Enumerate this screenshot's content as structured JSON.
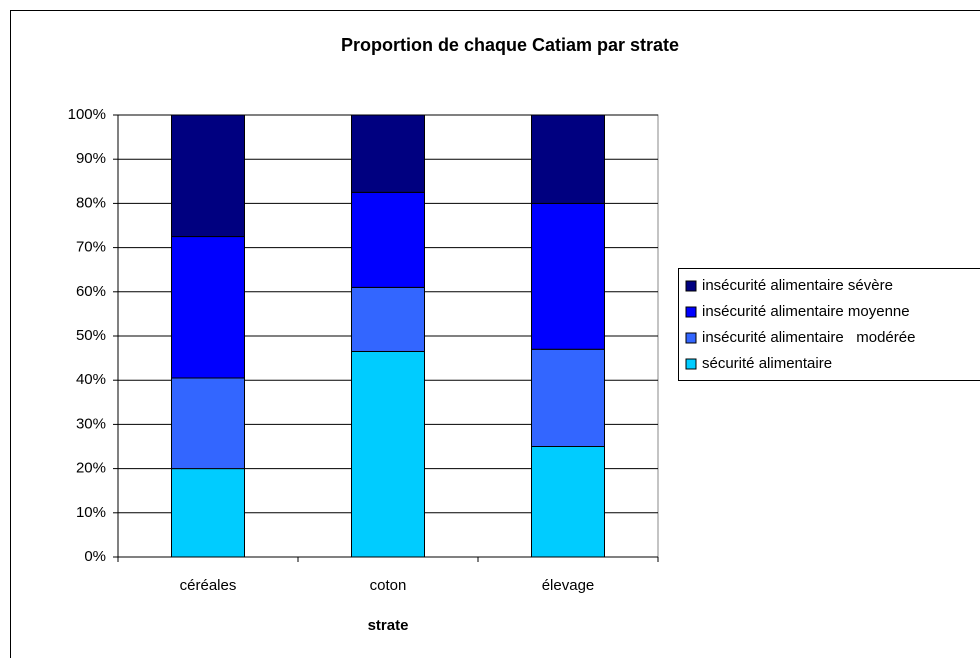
{
  "chart_data": {
    "type": "stacked_bar",
    "title": "Proportion de chaque Catiam par strate",
    "x_label": "strate",
    "categories": [
      "céréales",
      "coton",
      "élevage"
    ],
    "series": [
      {
        "name": "sécurité alimentaire",
        "color": "#00ccff",
        "values": [
          20,
          46.5,
          25
        ]
      },
      {
        "name": "insécurité alimentaire   modérée",
        "color": "#3366ff",
        "values": [
          20.5,
          14.5,
          22
        ]
      },
      {
        "name": "insécurité alimentaire moyenne",
        "color": "#0000ff",
        "values": [
          32,
          21.5,
          33
        ]
      },
      {
        "name": "insécurité alimentaire sévère",
        "color": "#000080",
        "values": [
          27.5,
          17.5,
          20
        ]
      }
    ],
    "ylim": [
      0,
      100
    ],
    "yticks": [
      {
        "value": 0,
        "label": "0%"
      },
      {
        "value": 10,
        "label": "10%"
      },
      {
        "value": 20,
        "label": "20%"
      },
      {
        "value": 30,
        "label": "30%"
      },
      {
        "value": 40,
        "label": "40%"
      },
      {
        "value": 50,
        "label": "50%"
      },
      {
        "value": 60,
        "label": "60%"
      },
      {
        "value": 70,
        "label": "70%"
      },
      {
        "value": 80,
        "label": "80%"
      },
      {
        "value": 90,
        "label": "90%"
      },
      {
        "value": 100,
        "label": "100%"
      }
    ],
    "grid": true,
    "legend": "right"
  }
}
